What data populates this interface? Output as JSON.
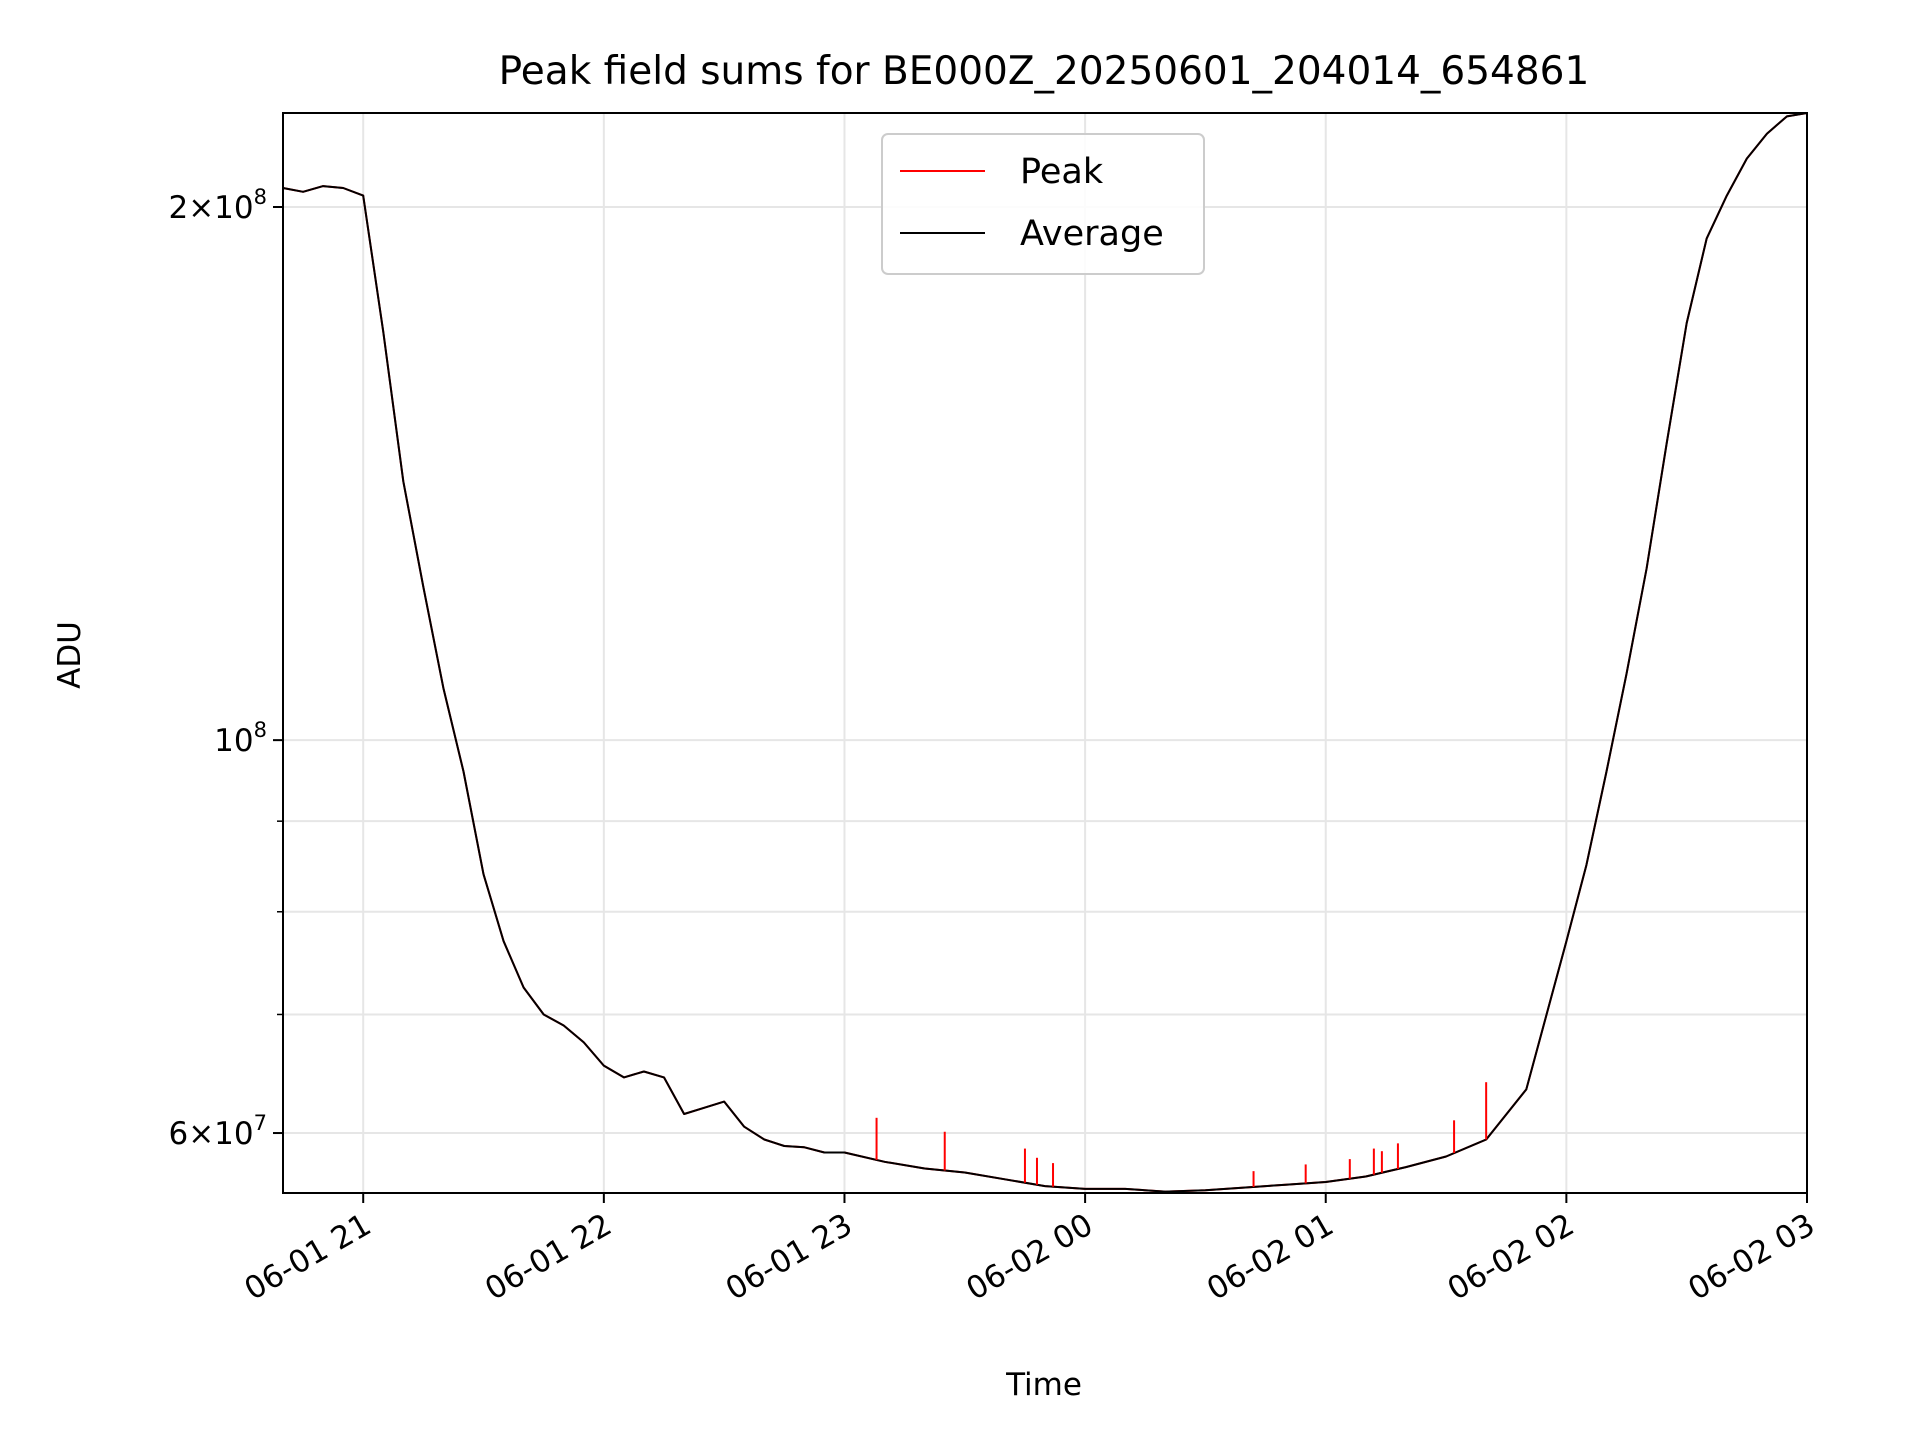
{
  "chart_data": {
    "type": "line",
    "title": "Peak field sums for BE000Z_20250601_204014_654861",
    "xlabel": "Time",
    "ylabel": "ADU",
    "x_scale": "time",
    "y_scale": "log",
    "xlim": [
      "2025-06-01 20:40",
      "2025-06-02 03:00"
    ],
    "ylim": [
      55500000,
      226000000
    ],
    "grid": true,
    "legend_position": "top-center",
    "x_ticks": [
      {
        "value": "2025-06-01 21:00",
        "label": "06-01 21"
      },
      {
        "value": "2025-06-01 22:00",
        "label": "06-01 22"
      },
      {
        "value": "2025-06-01 23:00",
        "label": "06-01 23"
      },
      {
        "value": "2025-06-02 00:00",
        "label": "06-02 00"
      },
      {
        "value": "2025-06-02 01:00",
        "label": "06-02 01"
      },
      {
        "value": "2025-06-02 02:00",
        "label": "06-02 02"
      },
      {
        "value": "2025-06-02 03:00",
        "label": "06-02 03"
      }
    ],
    "y_major_ticks": [
      {
        "value": 200000000,
        "mantissa": "2",
        "exponent": "8"
      },
      {
        "value": 100000000,
        "mantissa": "",
        "exponent": "8"
      },
      {
        "value": 60000000,
        "mantissa": "6",
        "exponent": "7"
      }
    ],
    "y_minor_ticks": [
      90000000,
      80000000,
      70000000
    ],
    "series": [
      {
        "name": "Peak",
        "color": "#ff0000",
        "x": [
          "2025-06-01 20:40",
          "2025-06-01 20:45",
          "2025-06-01 20:50",
          "2025-06-01 20:55",
          "2025-06-01 21:00",
          "2025-06-01 21:05",
          "2025-06-01 21:10",
          "2025-06-01 21:15",
          "2025-06-01 21:20",
          "2025-06-01 21:25",
          "2025-06-01 21:30",
          "2025-06-01 21:35",
          "2025-06-01 21:40",
          "2025-06-01 21:45",
          "2025-06-01 21:50",
          "2025-06-01 21:55",
          "2025-06-01 22:00",
          "2025-06-01 22:05",
          "2025-06-01 22:10",
          "2025-06-01 22:15",
          "2025-06-01 22:20",
          "2025-06-01 22:25",
          "2025-06-01 22:30",
          "2025-06-01 22:35",
          "2025-06-01 22:40",
          "2025-06-01 22:45",
          "2025-06-01 22:50",
          "2025-06-01 22:55",
          "2025-06-01 23:00",
          "2025-06-01 23:10",
          "2025-06-01 23:20",
          "2025-06-01 23:30",
          "2025-06-01 23:40",
          "2025-06-01 23:50",
          "2025-06-02 00:00",
          "2025-06-02 00:10",
          "2025-06-02 00:20",
          "2025-06-02 00:30",
          "2025-06-02 00:40",
          "2025-06-02 00:50",
          "2025-06-02 01:00",
          "2025-06-02 01:10",
          "2025-06-02 01:20",
          "2025-06-02 01:30",
          "2025-06-02 01:40",
          "2025-06-02 01:50",
          "2025-06-02 02:00",
          "2025-06-02 02:05",
          "2025-06-02 02:10",
          "2025-06-02 02:15",
          "2025-06-02 02:20",
          "2025-06-02 02:25",
          "2025-06-02 02:30",
          "2025-06-02 02:35",
          "2025-06-02 02:40",
          "2025-06-02 02:45",
          "2025-06-02 02:50",
          "2025-06-02 02:55",
          "2025-06-02 03:00"
        ],
        "y": [
          205000000,
          204000000,
          205500000,
          205000000,
          203000000,
          170000000,
          140000000,
          122000000,
          107000000,
          96000000,
          84000000,
          77000000,
          72500000,
          70000000,
          69000000,
          67500000,
          65500000,
          64500000,
          65000000,
          64500000,
          61500000,
          62000000,
          62500000,
          60500000,
          59500000,
          59000000,
          58900000,
          58500000,
          58500000,
          57800000,
          57300000,
          57000000,
          56500000,
          56000000,
          55800000,
          55800000,
          55600000,
          55700000,
          55900000,
          56100000,
          56300000,
          56700000,
          57400000,
          58200000,
          59500000,
          63500000,
          77000000,
          85000000,
          96000000,
          109000000,
          125000000,
          147000000,
          172000000,
          192000000,
          203000000,
          213000000,
          220000000,
          225000000,
          226000000
        ]
      },
      {
        "name": "Average",
        "color": "#000000",
        "x": [
          "2025-06-01 20:40",
          "2025-06-01 20:45",
          "2025-06-01 20:50",
          "2025-06-01 20:55",
          "2025-06-01 21:00",
          "2025-06-01 21:05",
          "2025-06-01 21:10",
          "2025-06-01 21:15",
          "2025-06-01 21:20",
          "2025-06-01 21:25",
          "2025-06-01 21:30",
          "2025-06-01 21:35",
          "2025-06-01 21:40",
          "2025-06-01 21:45",
          "2025-06-01 21:50",
          "2025-06-01 21:55",
          "2025-06-01 22:00",
          "2025-06-01 22:05",
          "2025-06-01 22:10",
          "2025-06-01 22:15",
          "2025-06-01 22:20",
          "2025-06-01 22:25",
          "2025-06-01 22:30",
          "2025-06-01 22:35",
          "2025-06-01 22:40",
          "2025-06-01 22:45",
          "2025-06-01 22:50",
          "2025-06-01 22:55",
          "2025-06-01 23:00",
          "2025-06-01 23:10",
          "2025-06-01 23:20",
          "2025-06-01 23:30",
          "2025-06-01 23:40",
          "2025-06-01 23:50",
          "2025-06-02 00:00",
          "2025-06-02 00:10",
          "2025-06-02 00:20",
          "2025-06-02 00:30",
          "2025-06-02 00:40",
          "2025-06-02 00:50",
          "2025-06-02 01:00",
          "2025-06-02 01:10",
          "2025-06-02 01:20",
          "2025-06-02 01:30",
          "2025-06-02 01:40",
          "2025-06-02 01:50",
          "2025-06-02 02:00",
          "2025-06-02 02:05",
          "2025-06-02 02:10",
          "2025-06-02 02:15",
          "2025-06-02 02:20",
          "2025-06-02 02:25",
          "2025-06-02 02:30",
          "2025-06-02 02:35",
          "2025-06-02 02:40",
          "2025-06-02 02:45",
          "2025-06-02 02:50",
          "2025-06-02 02:55",
          "2025-06-02 03:00"
        ],
        "y": [
          205000000,
          204000000,
          205500000,
          205000000,
          203000000,
          170000000,
          140000000,
          122000000,
          107000000,
          96000000,
          84000000,
          77000000,
          72500000,
          70000000,
          69000000,
          67500000,
          65500000,
          64500000,
          65000000,
          64500000,
          61500000,
          62000000,
          62500000,
          60500000,
          59500000,
          59000000,
          58900000,
          58500000,
          58500000,
          57800000,
          57300000,
          57000000,
          56500000,
          56000000,
          55800000,
          55800000,
          55600000,
          55700000,
          55900000,
          56100000,
          56300000,
          56700000,
          57400000,
          58200000,
          59500000,
          63500000,
          77000000,
          85000000,
          96000000,
          109000000,
          125000000,
          147000000,
          172000000,
          192000000,
          203000000,
          213000000,
          220000000,
          225000000,
          226000000
        ]
      }
    ],
    "peak_spikes": [
      {
        "x": "2025-06-01 23:08",
        "y": 61200000
      },
      {
        "x": "2025-06-01 23:25",
        "y": 60100000
      },
      {
        "x": "2025-06-01 23:45",
        "y": 58800000
      },
      {
        "x": "2025-06-01 23:48",
        "y": 58100000
      },
      {
        "x": "2025-06-01 23:52",
        "y": 57700000
      },
      {
        "x": "2025-06-02 00:42",
        "y": 57100000
      },
      {
        "x": "2025-06-02 00:55",
        "y": 57600000
      },
      {
        "x": "2025-06-02 01:06",
        "y": 58000000
      },
      {
        "x": "2025-06-02 01:12",
        "y": 58800000
      },
      {
        "x": "2025-06-02 01:14",
        "y": 58600000
      },
      {
        "x": "2025-06-02 01:18",
        "y": 59200000
      },
      {
        "x": "2025-06-02 01:32",
        "y": 61000000
      },
      {
        "x": "2025-06-02 01:40",
        "y": 64100000
      }
    ]
  }
}
